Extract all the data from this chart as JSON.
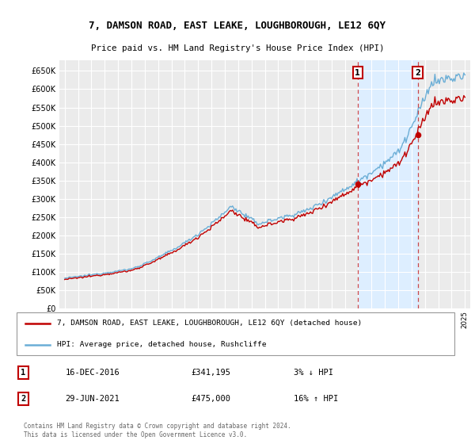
{
  "title": "7, DAMSON ROAD, EAST LEAKE, LOUGHBOROUGH, LE12 6QY",
  "subtitle": "Price paid vs. HM Land Registry's House Price Index (HPI)",
  "hpi_label": "HPI: Average price, detached house, Rushcliffe",
  "property_label": "7, DAMSON ROAD, EAST LEAKE, LOUGHBOROUGH, LE12 6QY (detached house)",
  "hpi_color": "#6BAED6",
  "property_color": "#C00000",
  "shade_color": "#DDEEFF",
  "annotation1_date": "16-DEC-2016",
  "annotation1_price": "£341,195",
  "annotation1_hpi": "3% ↓ HPI",
  "annotation2_date": "29-JUN-2021",
  "annotation2_price": "£475,000",
  "annotation2_hpi": "16% ↑ HPI",
  "copyright_text": "Contains HM Land Registry data © Crown copyright and database right 2024.\nThis data is licensed under the Open Government Licence v3.0.",
  "ylim_min": 0,
  "ylim_max": 680000,
  "yticks": [
    0,
    50000,
    100000,
    150000,
    200000,
    250000,
    300000,
    350000,
    400000,
    450000,
    500000,
    550000,
    600000,
    650000
  ],
  "background_color": "#FFFFFF",
  "plot_bg_color": "#EBEBEB",
  "grid_color": "#FFFFFF",
  "sale1_year": 2016.958,
  "sale2_year": 2021.458,
  "sale1_price": 341195,
  "sale2_price": 475000
}
